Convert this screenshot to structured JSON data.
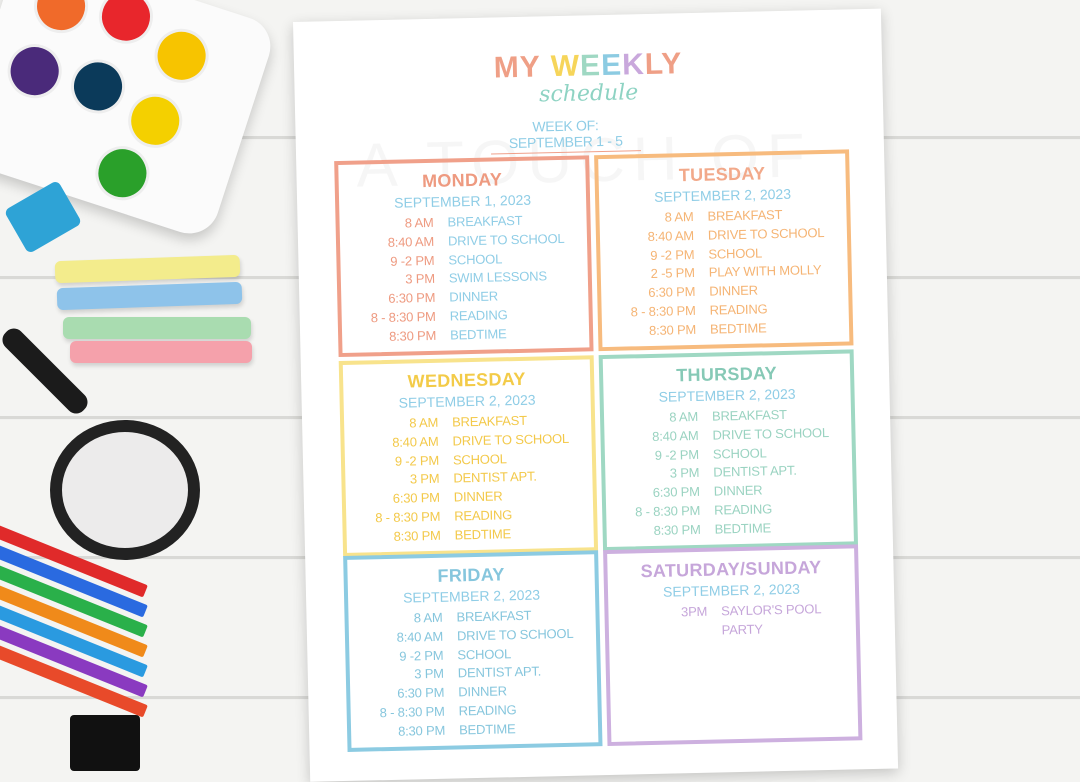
{
  "header": {
    "title_words": [
      {
        "text": "MY",
        "color": "#ef9f86"
      },
      {
        "text": "W",
        "color": "#f6d55a"
      },
      {
        "text": "E",
        "color": "#9fd8c3"
      },
      {
        "text": "E",
        "color": "#8ccbe2"
      },
      {
        "text": "K",
        "color": "#c9a8dc"
      },
      {
        "text": "LY",
        "color": "#ef9f86"
      }
    ],
    "subtitle": "schedule",
    "week_of": "WEEK OF: SEPTEMBER 1 - 5",
    "watermark": "A TOUCH OF"
  },
  "days": [
    {
      "name": "MONDAY",
      "date": "SEPTEMBER 1, 2023",
      "border": "#f0a08a",
      "dayColor": "#ee9a80",
      "timeColor": "#ee9a80",
      "actColor": "#8fcde6",
      "events": [
        [
          "8 AM",
          "BREAKFAST"
        ],
        [
          "8:40 AM",
          "DRIVE TO SCHOOL"
        ],
        [
          "9 -2 PM",
          "SCHOOL"
        ],
        [
          "3 PM",
          "SWIM LESSONS"
        ],
        [
          "6:30 PM",
          "DINNER"
        ],
        [
          "8 - 8:30 PM",
          "READING"
        ],
        [
          "8:30 PM",
          "BEDTIME"
        ]
      ]
    },
    {
      "name": "TUESDAY",
      "date": "SEPTEMBER 2, 2023",
      "border": "#f7bb7e",
      "dayColor": "#f2a98a",
      "timeColor": "#f5b474",
      "actColor": "#f5b474",
      "events": [
        [
          "8 AM",
          "BREAKFAST"
        ],
        [
          "8:40 AM",
          "DRIVE TO SCHOOL"
        ],
        [
          "9 -2 PM",
          "SCHOOL"
        ],
        [
          "2 -5 PM",
          "PLAY WITH MOLLY"
        ],
        [
          "6:30 PM",
          "DINNER"
        ],
        [
          "8 - 8:30 PM",
          "READING"
        ],
        [
          "8:30 PM",
          "BEDTIME"
        ]
      ]
    },
    {
      "name": "WEDNESDAY",
      "date": "SEPTEMBER 2, 2023",
      "border": "#f8e38c",
      "dayColor": "#f3cb48",
      "timeColor": "#f3c94a",
      "actColor": "#f3c94a",
      "events": [
        [
          "8 AM",
          "BREAKFAST"
        ],
        [
          "8:40 AM",
          "DRIVE TO SCHOOL"
        ],
        [
          "9 -2 PM",
          "SCHOOL"
        ],
        [
          "3 PM",
          "DENTIST APT."
        ],
        [
          "6:30 PM",
          "DINNER"
        ],
        [
          "8 - 8:30 PM",
          "READING"
        ],
        [
          "8:30 PM",
          "BEDTIME"
        ]
      ]
    },
    {
      "name": "THURSDAY",
      "date": "SEPTEMBER 2, 2023",
      "border": "#9fd8c3",
      "dayColor": "#86c9b6",
      "timeColor": "#9ad3c1",
      "actColor": "#9ad3c1",
      "events": [
        [
          "8 AM",
          "BREAKFAST"
        ],
        [
          "8:40 AM",
          "DRIVE TO SCHOOL"
        ],
        [
          "9 -2 PM",
          "SCHOOL"
        ],
        [
          "3 PM",
          "DENTIST APT."
        ],
        [
          "6:30 PM",
          "DINNER"
        ],
        [
          "8 - 8:30 PM",
          "READING"
        ],
        [
          "8:30 PM",
          "BEDTIME"
        ]
      ]
    },
    {
      "name": "FRIDAY",
      "date": "SEPTEMBER 2, 2023",
      "border": "#8ccbe2",
      "dayColor": "#86c6dd",
      "timeColor": "#86c6dd",
      "actColor": "#86c6dd",
      "events": [
        [
          "8 AM",
          "BREAKFAST"
        ],
        [
          "8:40 AM",
          "DRIVE TO SCHOOL"
        ],
        [
          "9 -2 PM",
          "SCHOOL"
        ],
        [
          "3 PM",
          "DENTIST APT."
        ],
        [
          "6:30 PM",
          "DINNER"
        ],
        [
          "8 - 8:30 PM",
          "READING"
        ],
        [
          "8:30 PM",
          "BEDTIME"
        ]
      ]
    },
    {
      "name": "SATURDAY/SUNDAY",
      "date": "SEPTEMBER 2, 2023",
      "border": "#cdb0df",
      "dayColor": "#c6a6da",
      "timeColor": "#c6a6da",
      "actColor": "#c6a6da",
      "events": [
        [
          "3PM",
          "SAYLOR'S POOL PARTY"
        ]
      ]
    }
  ]
}
